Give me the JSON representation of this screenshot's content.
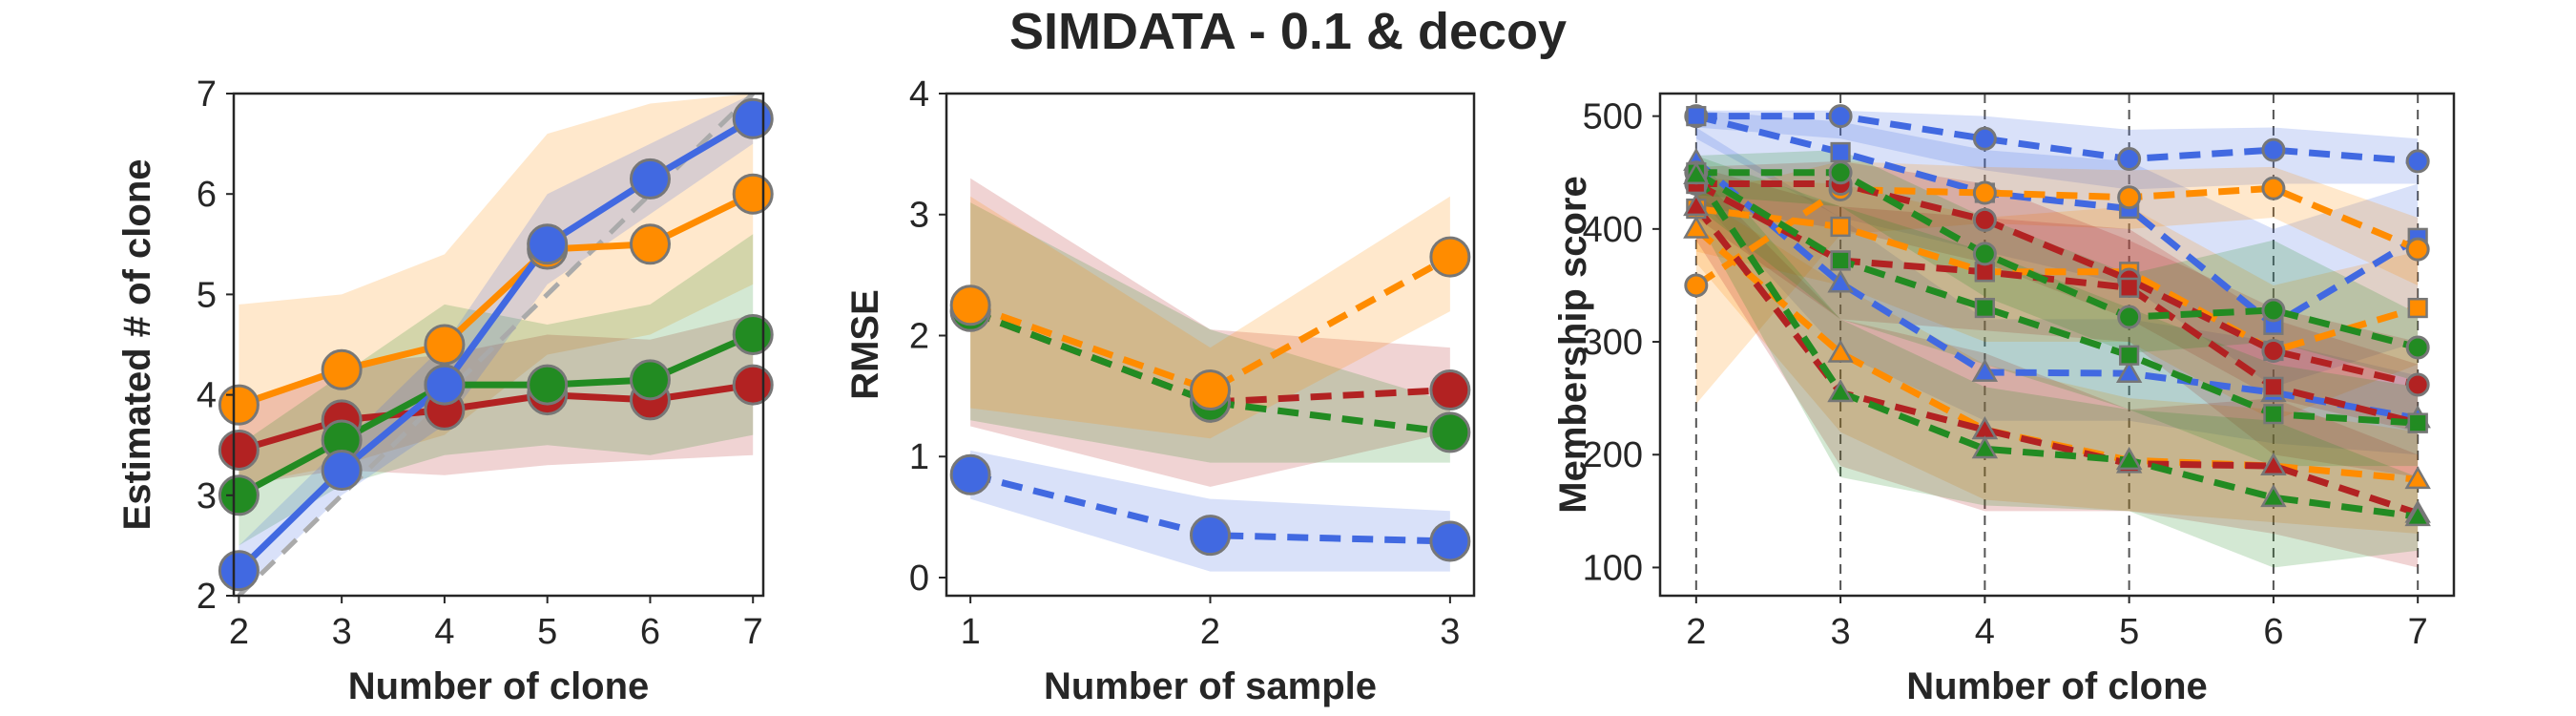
{
  "figure": {
    "title": "SIMDATA - 0.1 & decoy"
  },
  "colors": {
    "blue": "#4169e1",
    "orange": "#ff8c00",
    "green": "#228b22",
    "red": "#b22222",
    "gray": "#aaaaaa",
    "edge": "#777777"
  },
  "chart_data": [
    {
      "type": "line",
      "xlabel": "Number of clone",
      "ylabel": "Estimated # of clone",
      "xlim": [
        1.95,
        7.1
      ],
      "ylim": [
        2,
        7
      ],
      "xticks": [
        2,
        3,
        4,
        5,
        6,
        7
      ],
      "yticks": [
        2,
        3,
        4,
        5,
        6,
        7
      ],
      "grid": false,
      "reference_line": {
        "x": [
          2,
          7
        ],
        "y": [
          2,
          7
        ],
        "style": "dashed",
        "color": "gray"
      },
      "x": [
        2,
        3,
        4,
        5,
        6,
        7
      ],
      "series": [
        {
          "color": "orange",
          "marker": "circle",
          "line": "solid",
          "values": [
            3.9,
            4.25,
            4.5,
            5.45,
            5.5,
            6.0
          ],
          "lower": [
            3.1,
            3.3,
            3.6,
            4.4,
            4.6,
            5.1
          ],
          "upper": [
            4.9,
            5.0,
            5.4,
            6.6,
            6.9,
            7.0
          ]
        },
        {
          "color": "red",
          "marker": "circle",
          "line": "solid",
          "values": [
            3.45,
            3.75,
            3.85,
            4.0,
            3.95,
            4.1
          ],
          "lower": [
            3.1,
            3.25,
            3.2,
            3.3,
            3.35,
            3.4
          ],
          "upper": [
            3.9,
            4.3,
            4.4,
            4.6,
            4.55,
            4.8
          ]
        },
        {
          "color": "green",
          "marker": "circle",
          "line": "solid",
          "values": [
            3.0,
            3.55,
            4.1,
            4.1,
            4.15,
            4.6
          ],
          "lower": [
            2.5,
            3.1,
            3.4,
            3.5,
            3.4,
            3.6
          ],
          "upper": [
            3.5,
            4.2,
            4.9,
            4.7,
            4.9,
            5.6
          ]
        },
        {
          "color": "blue",
          "marker": "circle",
          "line": "solid",
          "values": [
            2.25,
            3.25,
            4.1,
            5.5,
            6.15,
            6.75
          ],
          "lower": [
            2.0,
            3.0,
            3.7,
            5.1,
            5.8,
            6.5
          ],
          "upper": [
            2.5,
            3.5,
            4.5,
            6.0,
            6.5,
            7.0
          ]
        }
      ]
    },
    {
      "type": "line",
      "xlabel": "Number of sample",
      "ylabel": "RMSE",
      "xlim": [
        0.9,
        3.1
      ],
      "ylim": [
        -0.15,
        4
      ],
      "xticks": [
        1,
        2,
        3
      ],
      "yticks": [
        0,
        1,
        2,
        3,
        4
      ],
      "grid": false,
      "x": [
        1,
        2,
        3
      ],
      "series": [
        {
          "color": "red",
          "marker": "circle",
          "line": "dashed",
          "values": [
            2.2,
            1.45,
            1.55
          ],
          "lower": [
            1.25,
            0.75,
            1.2
          ],
          "upper": [
            3.3,
            2.05,
            1.9
          ]
        },
        {
          "color": "green",
          "marker": "circle",
          "line": "dashed",
          "values": [
            2.2,
            1.45,
            1.2
          ],
          "lower": [
            1.3,
            0.95,
            0.95
          ],
          "upper": [
            3.1,
            2.05,
            1.45
          ]
        },
        {
          "color": "orange",
          "marker": "circle",
          "line": "dashed",
          "values": [
            2.25,
            1.55,
            2.65
          ],
          "lower": [
            1.4,
            1.15,
            2.2
          ],
          "upper": [
            3.15,
            1.9,
            3.15
          ]
        },
        {
          "color": "blue",
          "marker": "circle",
          "line": "dashed",
          "values": [
            0.85,
            0.35,
            0.3
          ],
          "lower": [
            0.65,
            0.05,
            0.05
          ],
          "upper": [
            1.05,
            0.65,
            0.55
          ]
        }
      ]
    },
    {
      "type": "line",
      "xlabel": "Number of clone",
      "ylabel": "Membership score",
      "xlim": [
        1.75,
        7.25
      ],
      "ylim": [
        75,
        520
      ],
      "xticks": [
        2,
        3,
        4,
        5,
        6,
        7
      ],
      "yticks": [
        100,
        200,
        300,
        400,
        500
      ],
      "grid": false,
      "vertical_lines": [
        2,
        3,
        4,
        5,
        6,
        7
      ],
      "x": [
        2,
        3,
        4,
        5,
        6,
        7
      ],
      "series": [
        {
          "color": "blue",
          "marker": "circle",
          "line": "dashed",
          "values": [
            500,
            500,
            480,
            462,
            470,
            460
          ],
          "lower": [
            490,
            480,
            452,
            435,
            440,
            440
          ],
          "upper": [
            505,
            505,
            500,
            488,
            490,
            480
          ]
        },
        {
          "color": "blue",
          "marker": "square",
          "line": "dashed",
          "values": [
            500,
            468,
            432,
            418,
            315,
            392
          ],
          "lower": [
            480,
            410,
            380,
            350,
            260,
            300
          ],
          "upper": [
            505,
            495,
            470,
            460,
            400,
            440
          ]
        },
        {
          "color": "blue",
          "marker": "triangle",
          "line": "dashed",
          "values": [
            460,
            352,
            273,
            272,
            255,
            232
          ],
          "lower": [
            430,
            290,
            230,
            230,
            210,
            200
          ],
          "upper": [
            490,
            410,
            320,
            320,
            300,
            270
          ]
        },
        {
          "color": "orange",
          "marker": "circle",
          "line": "dashed",
          "values": [
            350,
            435,
            432,
            428,
            436,
            382
          ],
          "lower": [
            245,
            395,
            405,
            400,
            410,
            350
          ],
          "upper": [
            430,
            460,
            455,
            452,
            455,
            410
          ]
        },
        {
          "color": "orange",
          "marker": "square",
          "line": "dashed",
          "values": [
            418,
            402,
            362,
            362,
            292,
            330
          ],
          "lower": [
            380,
            350,
            300,
            300,
            230,
            280
          ],
          "upper": [
            445,
            440,
            410,
            420,
            350,
            380
          ]
        },
        {
          "color": "orange",
          "marker": "triangle",
          "line": "dashed",
          "values": [
            400,
            290,
            222,
            195,
            190,
            178
          ],
          "lower": [
            370,
            220,
            160,
            150,
            140,
            130
          ],
          "upper": [
            430,
            350,
            280,
            250,
            240,
            220
          ]
        },
        {
          "color": "red",
          "marker": "circle",
          "line": "dashed",
          "values": [
            440,
            440,
            408,
            355,
            292,
            262
          ],
          "lower": [
            420,
            400,
            370,
            320,
            250,
            220
          ],
          "upper": [
            455,
            460,
            440,
            390,
            330,
            300
          ]
        },
        {
          "color": "red",
          "marker": "square",
          "line": "dashed",
          "values": [
            440,
            372,
            362,
            348,
            260,
            228
          ],
          "lower": [
            410,
            320,
            310,
            300,
            200,
            180
          ],
          "upper": [
            455,
            420,
            410,
            400,
            320,
            280
          ]
        },
        {
          "color": "red",
          "marker": "triangle",
          "line": "dashed",
          "values": [
            420,
            255,
            222,
            192,
            190,
            148
          ],
          "lower": [
            390,
            190,
            150,
            150,
            130,
            100
          ],
          "upper": [
            450,
            320,
            290,
            240,
            250,
            200
          ]
        },
        {
          "color": "green",
          "marker": "circle",
          "line": "dashed",
          "values": [
            450,
            450,
            378,
            322,
            328,
            295
          ],
          "lower": [
            430,
            420,
            340,
            290,
            300,
            265
          ],
          "upper": [
            465,
            470,
            410,
            360,
            390,
            325
          ]
        },
        {
          "color": "green",
          "marker": "square",
          "line": "dashed",
          "values": [
            450,
            372,
            330,
            288,
            236,
            228
          ],
          "lower": [
            420,
            320,
            280,
            240,
            190,
            190
          ],
          "upper": [
            465,
            420,
            380,
            330,
            280,
            260
          ]
        },
        {
          "color": "green",
          "marker": "triangle",
          "line": "dashed",
          "values": [
            448,
            255,
            205,
            195,
            162,
            145
          ],
          "lower": [
            410,
            180,
            155,
            150,
            100,
            115
          ],
          "upper": [
            465,
            320,
            260,
            240,
            230,
            180
          ]
        }
      ]
    }
  ]
}
